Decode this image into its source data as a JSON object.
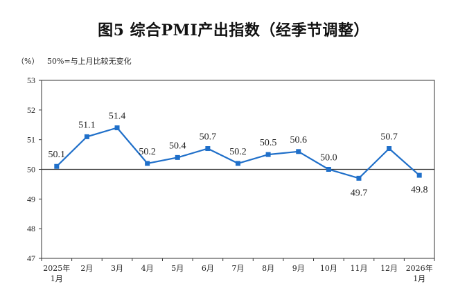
{
  "page": {
    "title": "图5  综合PMI产出指数（经季节调整）",
    "y_unit": "（%）",
    "note": "50%=与上月比较无变化"
  },
  "chart_data": {
    "type": "line",
    "title": "图5  综合PMI产出指数（经季节调整）",
    "xlabel": "",
    "ylabel": "",
    "ylim": [
      47,
      53
    ],
    "yticks": [
      "53",
      "52",
      "51",
      "50",
      "49",
      "48",
      "47"
    ],
    "reference_line": 50,
    "grid": false,
    "line_color": "#1f6fc9",
    "categories": [
      [
        "2025年",
        "1月"
      ],
      [
        "2月"
      ],
      [
        "3月"
      ],
      [
        "4月"
      ],
      [
        "5月"
      ],
      [
        "6月"
      ],
      [
        "7月"
      ],
      [
        "8月"
      ],
      [
        "9月"
      ],
      [
        "10月"
      ],
      [
        "11月"
      ],
      [
        "12月"
      ],
      [
        "2026年",
        "1月"
      ]
    ],
    "values": [
      50.1,
      51.1,
      51.4,
      50.2,
      50.4,
      50.7,
      50.2,
      50.5,
      50.6,
      50.0,
      49.7,
      50.7,
      49.8
    ],
    "labels": [
      "50.1",
      "51.1",
      "51.4",
      "50.2",
      "50.4",
      "50.7",
      "50.2",
      "50.5",
      "50.6",
      "50.0",
      "49.7",
      "50.7",
      "49.8"
    ],
    "label_positions": [
      "above",
      "above",
      "above",
      "above",
      "above",
      "above",
      "above",
      "above",
      "above",
      "above",
      "below",
      "above",
      "below"
    ]
  }
}
